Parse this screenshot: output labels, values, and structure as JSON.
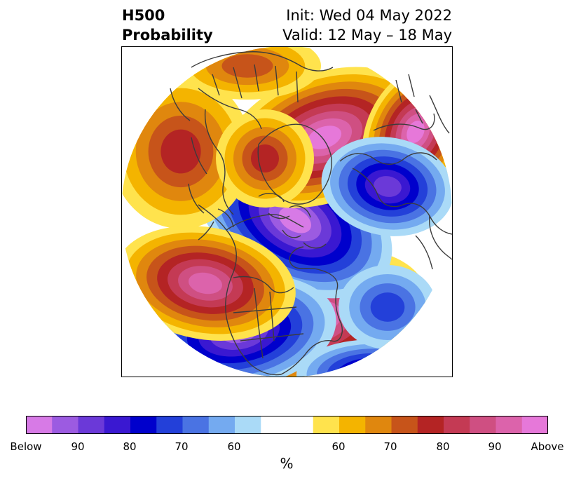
{
  "header": {
    "field": "H500",
    "product": "Probability",
    "init": "Init: Wed 04 May 2022",
    "valid": "Valid: 12 May – 18 May"
  },
  "legend": {
    "below_colors": [
      "#d77ae6",
      "#9c5be1",
      "#6b39d8",
      "#3a18d1",
      "#0000cc",
      "#2340d9",
      "#4a73e3",
      "#74aaf0",
      "#aadaf7"
    ],
    "neutral_color": "#ffffff",
    "above_colors": [
      "#ffe34d",
      "#f4b400",
      "#e0870e",
      "#c7541a",
      "#b42424",
      "#c43a54",
      "#cf4f82",
      "#dc63ab",
      "#e678d9"
    ],
    "ticks": [
      "Below",
      "90",
      "80",
      "70",
      "60",
      "60",
      "70",
      "80",
      "90",
      "Above"
    ],
    "unit": "%"
  },
  "map": {
    "projection": "north-polar-stereographic",
    "anomalies": [
      {
        "sign": "above",
        "peak_pct": 95,
        "region": "central Canada / Hudson Bay"
      },
      {
        "sign": "above",
        "peak_pct": 95,
        "region": "northern Europe / North Atlantic"
      },
      {
        "sign": "above",
        "peak_pct": 95,
        "region": "North Pacific / Aleutians"
      },
      {
        "sign": "above",
        "peak_pct": 90,
        "region": "eastern United States"
      },
      {
        "sign": "above",
        "peak_pct": 75,
        "region": "western Siberia"
      },
      {
        "sign": "above",
        "peak_pct": 75,
        "region": "eastern Europe"
      },
      {
        "sign": "above",
        "peak_pct": 70,
        "region": "Bering Strait / Alaska"
      },
      {
        "sign": "below",
        "peak_pct": 95,
        "region": "Arctic Ocean / Greenland"
      },
      {
        "sign": "below",
        "peak_pct": 90,
        "region": "western United States"
      },
      {
        "sign": "below",
        "peak_pct": 85,
        "region": "Scandinavia"
      },
      {
        "sign": "below",
        "peak_pct": 85,
        "region": "central Siberia"
      },
      {
        "sign": "below",
        "peak_pct": 70,
        "region": "central Atlantic"
      }
    ]
  }
}
